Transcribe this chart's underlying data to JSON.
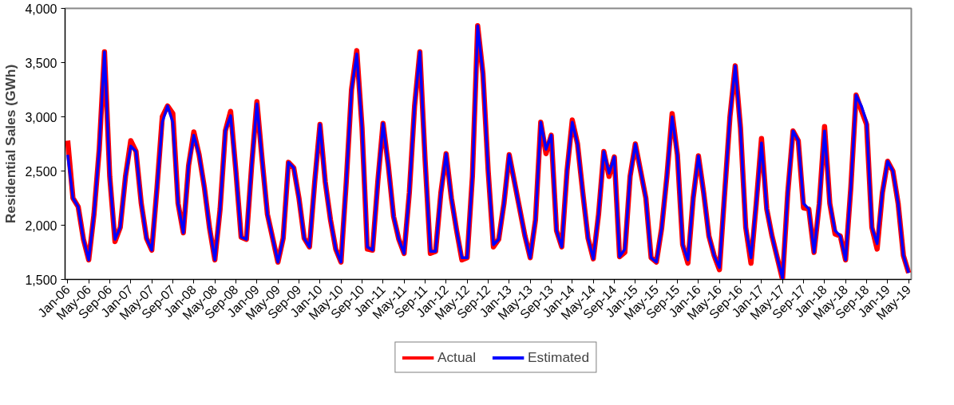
{
  "chart_data": {
    "type": "line",
    "ylabel": "Residential Sales (GWh)",
    "categories": [
      "Jan-06",
      null,
      null,
      null,
      "May-06",
      null,
      null,
      null,
      "Sep-06",
      null,
      null,
      null,
      "Jan-07",
      null,
      null,
      null,
      "May-07",
      null,
      null,
      null,
      "Sep-07",
      null,
      null,
      null,
      "Jan-08",
      null,
      null,
      null,
      "May-08",
      null,
      null,
      null,
      "Sep-08",
      null,
      null,
      null,
      "Jan-09",
      null,
      null,
      null,
      "May-09",
      null,
      null,
      null,
      "Sep-09",
      null,
      null,
      null,
      "Jan-10",
      null,
      null,
      null,
      "May-10",
      null,
      null,
      null,
      "Sep-10",
      null,
      null,
      null,
      "Jan-11",
      null,
      null,
      null,
      "May-11",
      null,
      null,
      null,
      "Sep-11",
      null,
      null,
      null,
      "Jan-12",
      null,
      null,
      null,
      "May-12",
      null,
      null,
      null,
      "Sep-12",
      null,
      null,
      null,
      "Jan-13",
      null,
      null,
      null,
      "May-13",
      null,
      null,
      null,
      "Sep-13",
      null,
      null,
      null,
      "Jan-14",
      null,
      null,
      null,
      "May-14",
      null,
      null,
      null,
      "Sep-14",
      null,
      null,
      null,
      "Jan-15",
      null,
      null,
      null,
      "May-15",
      null,
      null,
      null,
      "Sep-15",
      null,
      null,
      null,
      "Jan-16",
      null,
      null,
      null,
      "May-16",
      null,
      null,
      null,
      "Sep-16",
      null,
      null,
      null,
      "Jan-17",
      null,
      null,
      null,
      "May-17",
      null,
      null,
      null,
      "Sep-17",
      null,
      null,
      null,
      "Jan-18",
      null,
      null,
      null,
      "May-18",
      null,
      null,
      null,
      "Sep-18",
      null,
      null,
      null,
      "Jan-19",
      null,
      null,
      null,
      "May-19"
    ],
    "series": [
      {
        "name": "Actual",
        "color": "#ff0000",
        "values": [
          2780,
          2250,
          2170,
          1870,
          1680,
          2100,
          2700,
          3600,
          2450,
          1850,
          1980,
          2450,
          2780,
          2680,
          2200,
          1880,
          1770,
          2350,
          3000,
          3100,
          3030,
          2200,
          1930,
          2550,
          2860,
          2650,
          2350,
          1970,
          1680,
          2150,
          2870,
          3050,
          2500,
          1890,
          1870,
          2550,
          3140,
          2600,
          2100,
          1880,
          1660,
          1880,
          2580,
          2530,
          2250,
          1880,
          1800,
          2400,
          2930,
          2400,
          2050,
          1780,
          1660,
          2400,
          3250,
          3610,
          2900,
          1780,
          1770,
          2400,
          2940,
          2550,
          2080,
          1870,
          1740,
          2300,
          3100,
          3600,
          2600,
          1740,
          1760,
          2300,
          2660,
          2250,
          1950,
          1680,
          1700,
          2450,
          3840,
          3400,
          2500,
          1800,
          1870,
          2200,
          2650,
          2400,
          2150,
          1900,
          1700,
          2050,
          2950,
          2660,
          2830,
          1950,
          1800,
          2500,
          2970,
          2750,
          2300,
          1880,
          1690,
          2100,
          2680,
          2450,
          2630,
          1710,
          1750,
          2450,
          2750,
          2500,
          2250,
          1700,
          1660,
          1970,
          2450,
          3030,
          2650,
          1820,
          1650,
          2250,
          2640,
          2300,
          1900,
          1720,
          1590,
          2300,
          3000,
          3470,
          2900,
          1980,
          1650,
          2200,
          2800,
          2150,
          1900,
          1700,
          1500,
          2300,
          2870,
          2780,
          2160,
          2150,
          1750,
          2200,
          2910,
          2200,
          1920,
          1900,
          1680,
          2350,
          3200,
          3060,
          2930,
          1980,
          1780,
          2300,
          2590,
          2500,
          2200,
          1720,
          1560
        ]
      },
      {
        "name": "Estimated",
        "color": "#0000ff",
        "values": [
          2650,
          2250,
          2170,
          1870,
          1680,
          2100,
          2700,
          3600,
          2450,
          1870,
          1980,
          2450,
          2730,
          2680,
          2200,
          1880,
          1770,
          2350,
          2950,
          3100,
          2950,
          2200,
          1930,
          2550,
          2830,
          2650,
          2350,
          1970,
          1680,
          2150,
          2870,
          3010,
          2500,
          1890,
          1870,
          2550,
          3120,
          2600,
          2100,
          1880,
          1660,
          1880,
          2580,
          2530,
          2250,
          1880,
          1800,
          2400,
          2930,
          2400,
          2050,
          1780,
          1660,
          2400,
          3250,
          3580,
          2900,
          1800,
          1770,
          2400,
          2940,
          2550,
          2080,
          1870,
          1740,
          2300,
          3100,
          3600,
          2600,
          1760,
          1760,
          2300,
          2660,
          2250,
          1950,
          1700,
          1700,
          2450,
          3840,
          3400,
          2500,
          1820,
          1870,
          2200,
          2650,
          2400,
          2150,
          1900,
          1700,
          2050,
          2950,
          2700,
          2830,
          1950,
          1800,
          2500,
          2950,
          2750,
          2300,
          1880,
          1690,
          2100,
          2680,
          2480,
          2630,
          1710,
          1780,
          2450,
          2750,
          2500,
          2250,
          1700,
          1660,
          1970,
          2450,
          3000,
          2650,
          1820,
          1680,
          2250,
          2640,
          2300,
          1900,
          1720,
          1610,
          2300,
          3000,
          3470,
          2900,
          1980,
          1700,
          2200,
          2760,
          2150,
          1900,
          1700,
          1510,
          2300,
          2870,
          2780,
          2200,
          2150,
          1750,
          2200,
          2870,
          2200,
          1950,
          1900,
          1680,
          2350,
          3200,
          3100,
          2950,
          1980,
          1830,
          2300,
          2590,
          2500,
          2200,
          1720,
          1560
        ]
      }
    ],
    "ylim": [
      1500,
      4000
    ],
    "yticks": [
      {
        "value": 1500,
        "label": "1,500"
      },
      {
        "value": 2000,
        "label": "2,000"
      },
      {
        "value": 2500,
        "label": "2,500"
      },
      {
        "value": 3000,
        "label": "3,000"
      },
      {
        "value": 3500,
        "label": "3,500"
      },
      {
        "value": 4000,
        "label": "4,000"
      }
    ],
    "grid": false,
    "legend": "bottom",
    "marker": "none",
    "line_style": "solid"
  }
}
